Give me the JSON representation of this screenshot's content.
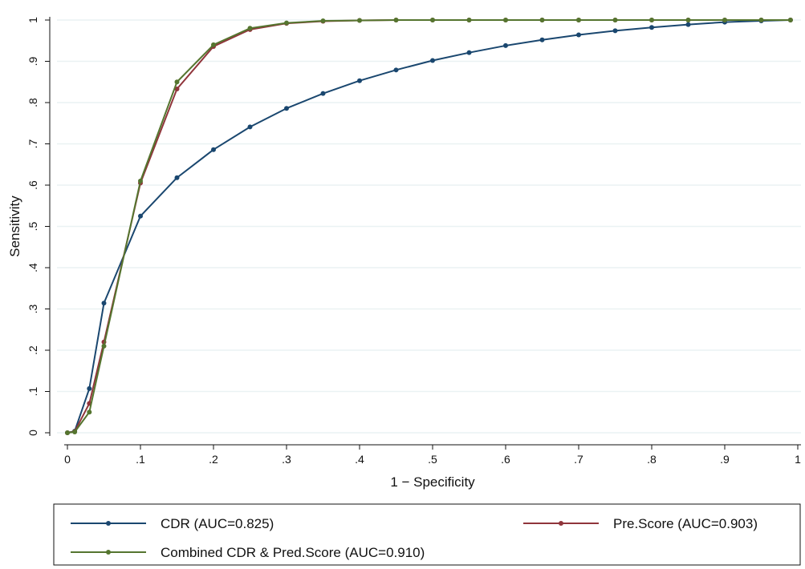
{
  "chart_data": {
    "type": "line",
    "title": "",
    "xlabel": "1 − Specificity",
    "ylabel": "Sensitivity",
    "xlim": [
      0,
      1
    ],
    "ylim": [
      0,
      1
    ],
    "grid": true,
    "legend_position": "bottom",
    "x_ticks": [
      {
        "value": 0,
        "label": "0"
      },
      {
        "value": 0.1,
        "label": ".1"
      },
      {
        "value": 0.2,
        "label": ".2"
      },
      {
        "value": 0.3,
        "label": ".3"
      },
      {
        "value": 0.4,
        "label": ".4"
      },
      {
        "value": 0.5,
        "label": ".5"
      },
      {
        "value": 0.6,
        "label": ".6"
      },
      {
        "value": 0.7,
        "label": ".7"
      },
      {
        "value": 0.8,
        "label": ".8"
      },
      {
        "value": 0.9,
        "label": ".9"
      },
      {
        "value": 1,
        "label": "1"
      }
    ],
    "y_ticks": [
      {
        "value": 0,
        "label": "0"
      },
      {
        "value": 0.1,
        "label": ".1"
      },
      {
        "value": 0.2,
        "label": ".2"
      },
      {
        "value": 0.3,
        "label": ".3"
      },
      {
        "value": 0.4,
        "label": ".4"
      },
      {
        "value": 0.5,
        "label": ".5"
      },
      {
        "value": 0.6,
        "label": ".6"
      },
      {
        "value": 0.7,
        "label": ".7"
      },
      {
        "value": 0.8,
        "label": ".8"
      },
      {
        "value": 0.9,
        "label": ".9"
      },
      {
        "value": 1,
        "label": "1"
      }
    ],
    "series": [
      {
        "name": "CDR (AUC=0.825)",
        "color": "#1a476f",
        "points": [
          [
            0,
            0
          ],
          [
            0.01,
            0.004
          ],
          [
            0.03,
            0.107
          ],
          [
            0.05,
            0.314
          ],
          [
            0.1,
            0.525
          ],
          [
            0.15,
            0.618
          ],
          [
            0.2,
            0.686
          ],
          [
            0.25,
            0.741
          ],
          [
            0.3,
            0.786
          ],
          [
            0.35,
            0.822
          ],
          [
            0.4,
            0.853
          ],
          [
            0.45,
            0.879
          ],
          [
            0.5,
            0.902
          ],
          [
            0.55,
            0.921
          ],
          [
            0.6,
            0.938
          ],
          [
            0.65,
            0.952
          ],
          [
            0.7,
            0.964
          ],
          [
            0.75,
            0.974
          ],
          [
            0.8,
            0.982
          ],
          [
            0.85,
            0.989
          ],
          [
            0.9,
            0.995
          ],
          [
            0.95,
            0.998
          ],
          [
            0.99,
            1.0
          ]
        ]
      },
      {
        "name": "Pre.Score (AUC=0.903)",
        "color": "#90353b",
        "points": [
          [
            0,
            0
          ],
          [
            0.01,
            0.003
          ],
          [
            0.03,
            0.071
          ],
          [
            0.05,
            0.22
          ],
          [
            0.1,
            0.605
          ],
          [
            0.15,
            0.833
          ],
          [
            0.2,
            0.936
          ],
          [
            0.25,
            0.977
          ],
          [
            0.3,
            0.992
          ],
          [
            0.35,
            0.997
          ],
          [
            0.4,
            0.999
          ],
          [
            0.45,
            1.0
          ],
          [
            0.5,
            1.0
          ],
          [
            0.55,
            1.0
          ],
          [
            0.6,
            1.0
          ],
          [
            0.65,
            1.0
          ],
          [
            0.7,
            1.0
          ],
          [
            0.75,
            1.0
          ],
          [
            0.8,
            1.0
          ],
          [
            0.85,
            1.0
          ],
          [
            0.9,
            1.0
          ],
          [
            0.95,
            1.0
          ],
          [
            0.99,
            1.0
          ]
        ]
      },
      {
        "name": "Combined CDR & Pred.Score (AUC=0.910)",
        "color": "#55752f",
        "points": [
          [
            0,
            0
          ],
          [
            0.01,
            0.002
          ],
          [
            0.03,
            0.05
          ],
          [
            0.05,
            0.21
          ],
          [
            0.1,
            0.61
          ],
          [
            0.15,
            0.85
          ],
          [
            0.2,
            0.94
          ],
          [
            0.25,
            0.98
          ],
          [
            0.3,
            0.993
          ],
          [
            0.35,
            0.998
          ],
          [
            0.4,
            0.999
          ],
          [
            0.45,
            1.0
          ],
          [
            0.5,
            1.0
          ],
          [
            0.55,
            1.0
          ],
          [
            0.6,
            1.0
          ],
          [
            0.65,
            1.0
          ],
          [
            0.7,
            1.0
          ],
          [
            0.75,
            1.0
          ],
          [
            0.8,
            1.0
          ],
          [
            0.85,
            1.0
          ],
          [
            0.9,
            1.0
          ],
          [
            0.95,
            1.0
          ],
          [
            0.99,
            1.0
          ]
        ]
      }
    ]
  }
}
